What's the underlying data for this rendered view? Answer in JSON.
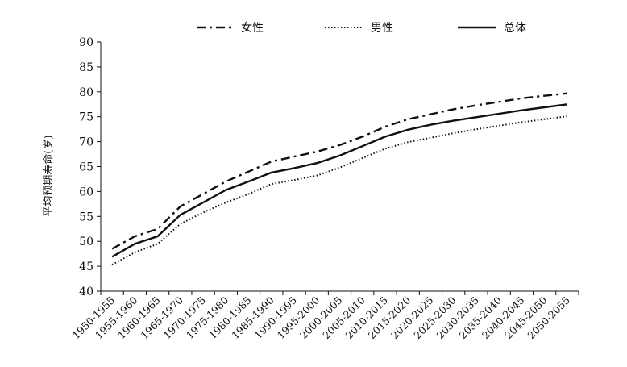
{
  "chart_data": {
    "type": "line",
    "title": "",
    "xlabel": "",
    "ylabel": "平均预期寿命(岁)",
    "ylim": [
      40,
      90
    ],
    "yticks": [
      40,
      45,
      50,
      55,
      60,
      65,
      70,
      75,
      80,
      85,
      90
    ],
    "grid": false,
    "legend_position": "top-center",
    "categories": [
      "1950-1955",
      "1955-1960",
      "1960-1965",
      "1965-1970",
      "1970-1975",
      "1975-1980",
      "1980-1985",
      "1985-1990",
      "1990-1995",
      "1995-2000",
      "2000-2005",
      "2005-2010",
      "2010-2015",
      "2015-2020",
      "2020-2025",
      "2025-2030",
      "2030-2035",
      "2035-2040",
      "2040-2045",
      "2045-2050",
      "2050-2055"
    ],
    "series": [
      {
        "name": "女性",
        "style": "dashdot",
        "color": "#111111",
        "values": [
          48.5,
          51.0,
          52.5,
          57.0,
          59.5,
          62.0,
          64.0,
          66.0,
          67.0,
          68.0,
          69.3,
          71.0,
          73.0,
          74.5,
          75.5,
          76.5,
          77.3,
          78.0,
          78.7,
          79.2,
          79.7
        ]
      },
      {
        "name": "男性",
        "style": "dotted",
        "color": "#111111",
        "values": [
          45.3,
          47.8,
          49.5,
          53.5,
          55.8,
          57.8,
          59.5,
          61.5,
          62.3,
          63.2,
          64.8,
          66.7,
          68.6,
          69.9,
          70.8,
          71.7,
          72.5,
          73.2,
          73.9,
          74.5,
          75.1
        ]
      },
      {
        "name": "总体",
        "style": "solid",
        "color": "#111111",
        "values": [
          46.9,
          49.5,
          51.0,
          55.3,
          57.8,
          60.3,
          62.0,
          63.8,
          64.7,
          65.7,
          67.2,
          69.1,
          71.0,
          72.4,
          73.4,
          74.2,
          74.9,
          75.6,
          76.3,
          76.9,
          77.5
        ]
      }
    ]
  }
}
